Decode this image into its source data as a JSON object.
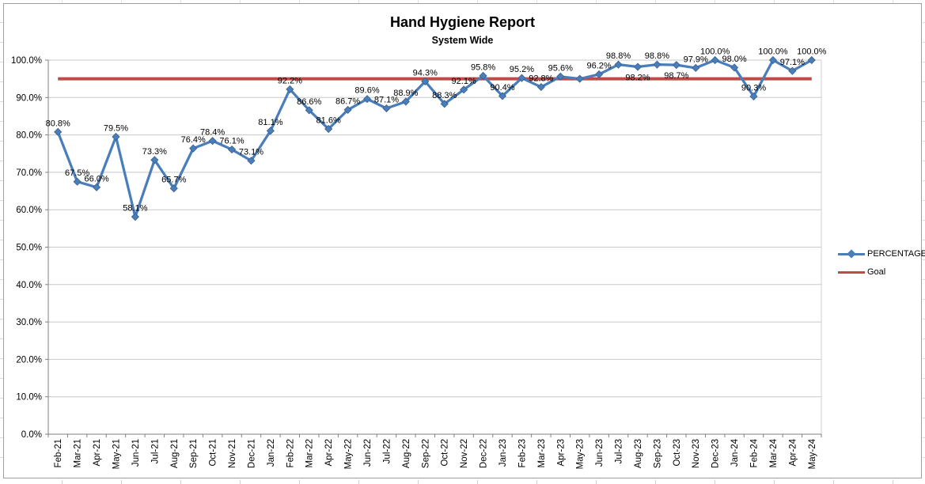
{
  "chart": {
    "legend": [
      {
        "label": "PERCENTAGE",
        "color": "#4A7EBB",
        "marker": "diamond"
      },
      {
        "label": "Goal",
        "color": "#BE4B48",
        "marker": "line"
      }
    ]
  },
  "chart_data": {
    "type": "line",
    "title": "Hand Hygiene Report",
    "subtitle": "System Wide",
    "categories": [
      "Feb-21",
      "Mar-21",
      "Apr-21",
      "May-21",
      "Jun-21",
      "Jul-21",
      "Aug-21",
      "Sep-21",
      "Oct-21",
      "Nov-21",
      "Dec-21",
      "Jan-22",
      "Feb-22",
      "Mar-22",
      "Apr-22",
      "May-22",
      "Jun-22",
      "Jul-22",
      "Aug-22",
      "Sep-22",
      "Oct-22",
      "Nov-22",
      "Dec-22",
      "Jan-23",
      "Feb-23",
      "Mar-23",
      "Apr-23",
      "May-23",
      "Jun-23",
      "Jul-23",
      "Aug-23",
      "Sep-23",
      "Oct-23",
      "Nov-23",
      "Dec-23",
      "Jan-24",
      "Feb-24",
      "Mar-24",
      "Apr-24",
      "May-24"
    ],
    "series": [
      {
        "name": "PERCENTAGE",
        "color": "#4A7EBB",
        "marker": "diamond",
        "values": [
          80.8,
          67.5,
          66.0,
          79.5,
          58.1,
          73.3,
          65.7,
          76.4,
          78.4,
          76.1,
          73.1,
          81.1,
          92.2,
          86.6,
          81.6,
          86.7,
          89.6,
          87.1,
          88.9,
          94.3,
          88.3,
          92.1,
          95.8,
          90.4,
          95.2,
          92.8,
          95.6,
          95.0,
          96.2,
          98.8,
          98.2,
          98.8,
          98.7,
          97.9,
          100.0,
          98.0,
          90.3,
          100.0,
          97.1,
          100.0
        ],
        "data_labels": [
          "80.8%",
          "67.5%",
          "66.0%",
          "79.5%",
          "58.1%",
          "73.3%",
          "65.7%",
          "76.4%",
          "78.4%",
          "76.1%",
          "73.1%",
          "81.1%",
          "92.2%",
          "86.6%",
          "81.6%",
          "86.7%",
          "89.6%",
          "87.1%",
          "88.9%",
          "94.3%",
          "88.3%",
          "92.1%",
          "95.8%",
          "90.4%",
          "95.2%",
          "92.8%",
          "95.6%",
          null,
          "96.2%",
          "98.8%",
          "98.2%",
          "98.8%",
          "98.7%",
          "97.9%",
          "100.0%",
          "98.0%",
          "90.3%",
          "100.0%",
          "97.1%",
          "100.0%"
        ],
        "labels_below_indices": [
          30,
          32
        ]
      },
      {
        "name": "Goal",
        "color": "#BE4B48",
        "constant_value": 95.0
      }
    ],
    "y_axis": {
      "min": 0,
      "max": 100,
      "tick_step": 10,
      "tick_labels": [
        "0.0%",
        "10.0%",
        "20.0%",
        "30.0%",
        "40.0%",
        "50.0%",
        "60.0%",
        "70.0%",
        "80.0%",
        "90.0%",
        "100.0%"
      ]
    },
    "grid": true,
    "legend_position": "right"
  }
}
